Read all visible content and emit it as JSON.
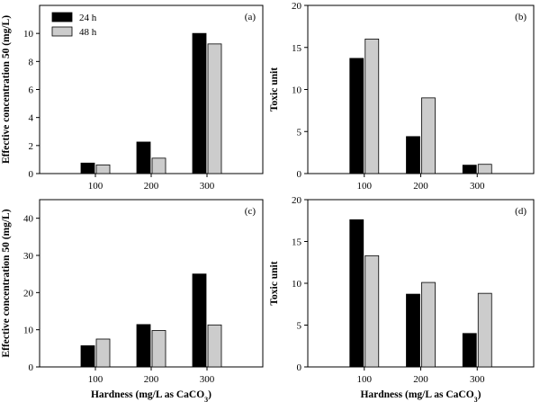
{
  "figure": {
    "legend": {
      "entries": [
        {
          "label": "24 h",
          "color": "#000000"
        },
        {
          "label": "48 h",
          "color": "#cccccc"
        }
      ],
      "placement": "top-left of panel (a)"
    }
  },
  "chart_data": [
    {
      "type": "bar",
      "panel_label": "(a)",
      "categories": [
        "100",
        "200",
        "300"
      ],
      "series": [
        {
          "name": "24 h",
          "color": "#000000",
          "values": [
            0.75,
            2.25,
            10.0
          ]
        },
        {
          "name": "48 h",
          "color": "#cccccc",
          "values": [
            0.62,
            1.1,
            9.25
          ]
        }
      ],
      "ylabel": "Effective concentration 50 (mg/L)",
      "xlabel": "",
      "ylim": [
        0,
        12
      ],
      "yticks": [
        0,
        2,
        4,
        6,
        8,
        10
      ],
      "grid": false
    },
    {
      "type": "bar",
      "panel_label": "(b)",
      "categories": [
        "100",
        "200",
        "300"
      ],
      "series": [
        {
          "name": "24 h",
          "color": "#000000",
          "values": [
            13.7,
            4.4,
            1.0
          ]
        },
        {
          "name": "48 h",
          "color": "#cccccc",
          "values": [
            16.0,
            9.0,
            1.1
          ]
        }
      ],
      "ylabel": "Toxic unit",
      "xlabel": "",
      "ylim": [
        0,
        20
      ],
      "yticks": [
        0,
        5,
        10,
        15,
        20
      ],
      "grid": false
    },
    {
      "type": "bar",
      "panel_label": "(c)",
      "categories": [
        "100",
        "200",
        "300"
      ],
      "series": [
        {
          "name": "24 h",
          "color": "#000000",
          "values": [
            5.7,
            11.4,
            25.0
          ]
        },
        {
          "name": "48 h",
          "color": "#cccccc",
          "values": [
            7.5,
            9.8,
            11.3
          ]
        }
      ],
      "ylabel": "Effective concentration 50 (mg/L)",
      "xlabel": "Hardness (mg/L as CaCO3)",
      "ylim": [
        0,
        45
      ],
      "yticks": [
        0,
        10,
        20,
        30,
        40
      ],
      "grid": false
    },
    {
      "type": "bar",
      "panel_label": "(d)",
      "categories": [
        "100",
        "200",
        "300"
      ],
      "series": [
        {
          "name": "24 h",
          "color": "#000000",
          "values": [
            17.6,
            8.7,
            4.0
          ]
        },
        {
          "name": "48 h",
          "color": "#cccccc",
          "values": [
            13.3,
            10.1,
            8.8
          ]
        }
      ],
      "ylabel": "Toxic unit",
      "xlabel": "Hardness (mg/L as CaCO3)",
      "ylim": [
        0,
        20
      ],
      "yticks": [
        0,
        5,
        10,
        15,
        20
      ],
      "grid": false
    }
  ]
}
